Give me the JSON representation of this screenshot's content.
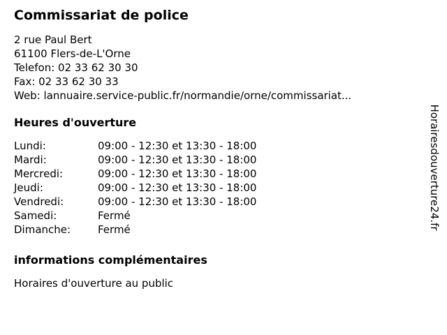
{
  "colors": {
    "background": "#ffffff",
    "text": "#000000"
  },
  "header": {
    "title": "Commissariat de police"
  },
  "contact": {
    "lines": [
      "2 rue Paul Bert",
      "61100 Flers-de-L'Orne",
      "Telefon: 02 33 62 30 30",
      "Fax: 02 33 62 30 33",
      "Web: lannuaire.service-public.fr/normandie/orne/commissariat..."
    ]
  },
  "opening_hours": {
    "heading": "Heures d'ouverture",
    "rows": [
      {
        "day": "Lundi:",
        "hours": "09:00 - 12:30 et 13:30 - 18:00"
      },
      {
        "day": "Mardi:",
        "hours": "09:00 - 12:30 et 13:30 - 18:00"
      },
      {
        "day": "Mercredi:",
        "hours": "09:00 - 12:30 et 13:30 - 18:00"
      },
      {
        "day": "Jeudi:",
        "hours": "09:00 - 12:30 et 13:30 - 18:00"
      },
      {
        "day": "Vendredi:",
        "hours": "09:00 - 12:30 et 13:30 - 18:00"
      },
      {
        "day": "Samedi:",
        "hours": "Fermé"
      },
      {
        "day": "Dimanche:",
        "hours": "Fermé"
      }
    ]
  },
  "additional_info": {
    "heading": "informations complémentaires",
    "text": "Horaires d'ouverture au public"
  },
  "watermark": {
    "text": "Horairesdouverture24.fr"
  }
}
